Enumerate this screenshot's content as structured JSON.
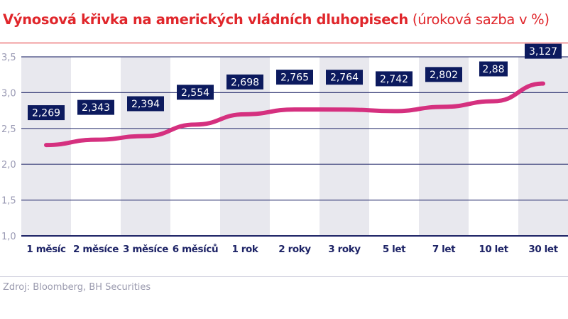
{
  "title": {
    "main": "Výnosová křivka na amerických vládních dluhopisech",
    "sub": "(úroková sazba v %)"
  },
  "source": "Zdroj: Bloomberg, BH Securities",
  "colors": {
    "title": "#e0262b",
    "line": "#d5307f",
    "label_bg": "#0c1a5e",
    "axis": "#1d2366",
    "band": "#e8e8ee"
  },
  "chart_data": {
    "type": "line",
    "categories": [
      "1 měsíc",
      "2 měsíce",
      "3 měsíce",
      "6 měsíců",
      "1 rok",
      "2 roky",
      "3 roky",
      "5 let",
      "7 let",
      "10 let",
      "30 let"
    ],
    "values": [
      2.269,
      2.343,
      2.394,
      2.554,
      2.698,
      2.765,
      2.764,
      2.742,
      2.802,
      2.88,
      3.127
    ],
    "data_labels": [
      "2,269",
      "2,343",
      "2,394",
      "2,554",
      "2,698",
      "2,765",
      "2,764",
      "2,742",
      "2,802",
      "2,88",
      "3,127"
    ],
    "yticks": [
      "1,0",
      "1,5",
      "2,0",
      "2,5",
      "3,0",
      "3,5"
    ],
    "ytick_values": [
      1.0,
      1.5,
      2.0,
      2.5,
      3.0,
      3.5
    ],
    "ylim": [
      1.0,
      3.5
    ],
    "grid": true,
    "alternating_bands": true
  }
}
